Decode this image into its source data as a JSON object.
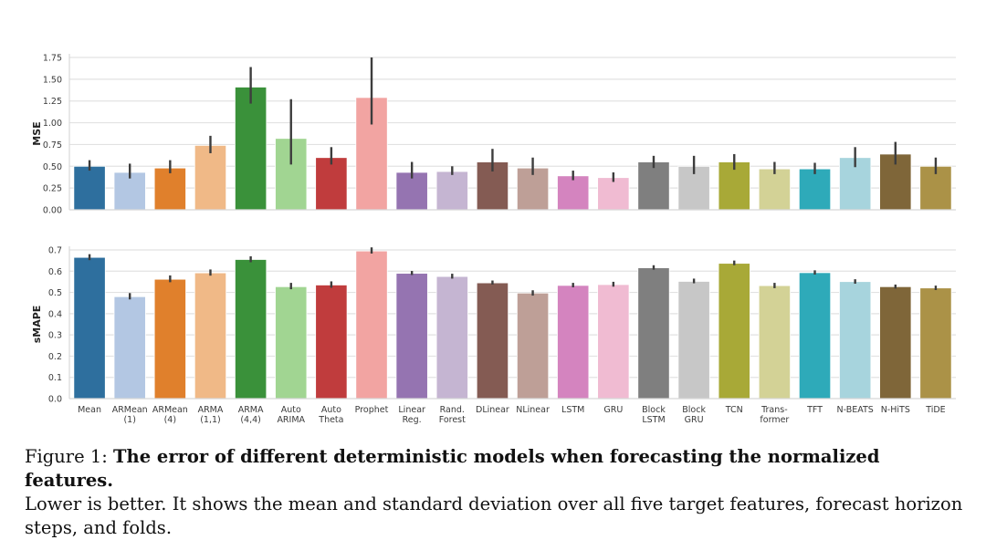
{
  "chart_data": [
    {
      "type": "bar",
      "title": "",
      "xlabel": "",
      "ylabel": "MSE",
      "ylim": [
        0,
        1.75
      ],
      "yticks": [
        "0.00",
        "0.25",
        "0.50",
        "0.75",
        "1.00",
        "1.25",
        "1.50",
        "1.75"
      ],
      "grid": true,
      "categories": [
        "Mean",
        "ARMean (1)",
        "ARMean (4)",
        "ARMA (1,1)",
        "ARMA (4,4)",
        "Auto ARIMA",
        "Auto Theta",
        "Prophet",
        "Linear Reg.",
        "Rand. Forest",
        "DLinear",
        "NLinear",
        "LSTM",
        "GRU",
        "Block LSTM",
        "Block GRU",
        "TCN",
        "Trans-former",
        "TFT",
        "N-BEATS",
        "N-HiTS",
        "TiDE"
      ],
      "values": [
        0.5,
        0.43,
        0.48,
        0.74,
        1.41,
        0.82,
        0.6,
        1.29,
        0.43,
        0.44,
        0.55,
        0.48,
        0.39,
        0.37,
        0.55,
        0.5,
        0.55,
        0.47,
        0.47,
        0.6,
        0.64,
        0.5
      ],
      "error_low": [
        0.45,
        0.36,
        0.42,
        0.65,
        1.22,
        0.52,
        0.52,
        0.98,
        0.36,
        0.4,
        0.44,
        0.4,
        0.34,
        0.32,
        0.48,
        0.41,
        0.46,
        0.41,
        0.41,
        0.49,
        0.52,
        0.41
      ],
      "error_high": [
        0.57,
        0.53,
        0.57,
        0.85,
        1.64,
        1.27,
        0.72,
        1.75,
        0.55,
        0.5,
        0.7,
        0.6,
        0.45,
        0.43,
        0.62,
        0.62,
        0.64,
        0.55,
        0.54,
        0.72,
        0.78,
        0.6
      ]
    },
    {
      "type": "bar",
      "title": "",
      "xlabel": "",
      "ylabel": "sMAPE",
      "ylim": [
        0,
        0.75
      ],
      "yticks": [
        "0.0",
        "0.1",
        "0.2",
        "0.3",
        "0.4",
        "0.5",
        "0.6",
        "0.7"
      ],
      "grid": true,
      "categories": [
        "Mean",
        "ARMean (1)",
        "ARMean (4)",
        "ARMA (1,1)",
        "ARMA (4,4)",
        "Auto ARIMA",
        "Auto Theta",
        "Prophet",
        "Linear Reg.",
        "Rand. Forest",
        "DLinear",
        "NLinear",
        "LSTM",
        "GRU",
        "Block LSTM",
        "Block GRU",
        "TCN",
        "Trans-former",
        "TFT",
        "N-BEATS",
        "N-HiTS",
        "TiDE"
      ],
      "values": [
        0.665,
        0.48,
        0.562,
        0.592,
        0.655,
        0.527,
        0.535,
        0.695,
        0.59,
        0.575,
        0.545,
        0.497,
        0.533,
        0.537,
        0.616,
        0.552,
        0.637,
        0.532,
        0.593,
        0.551,
        0.527,
        0.521
      ],
      "error_low": [
        0.652,
        0.467,
        0.548,
        0.579,
        0.642,
        0.515,
        0.522,
        0.683,
        0.582,
        0.565,
        0.537,
        0.485,
        0.524,
        0.527,
        0.607,
        0.543,
        0.628,
        0.52,
        0.584,
        0.541,
        0.518,
        0.511
      ],
      "error_high": [
        0.68,
        0.497,
        0.58,
        0.608,
        0.67,
        0.545,
        0.552,
        0.712,
        0.601,
        0.588,
        0.556,
        0.51,
        0.545,
        0.55,
        0.628,
        0.565,
        0.65,
        0.545,
        0.604,
        0.562,
        0.537,
        0.532
      ]
    }
  ],
  "x_labels": [
    [
      "Mean"
    ],
    [
      "ARMean",
      "(1)"
    ],
    [
      "ARMean",
      "(4)"
    ],
    [
      "ARMA",
      "(1,1)"
    ],
    [
      "ARMA",
      "(4,4)"
    ],
    [
      "Auto",
      "ARIMA"
    ],
    [
      "Auto",
      "Theta"
    ],
    [
      "Prophet"
    ],
    [
      "Linear",
      "Reg."
    ],
    [
      "Rand.",
      "Forest"
    ],
    [
      "DLinear"
    ],
    [
      "NLinear"
    ],
    [
      "LSTM"
    ],
    [
      "GRU"
    ],
    [
      "Block",
      "LSTM"
    ],
    [
      "Block",
      "GRU"
    ],
    [
      "TCN"
    ],
    [
      "Trans-",
      "former"
    ],
    [
      "TFT"
    ],
    [
      "N-BEATS"
    ],
    [
      "N-HiTS"
    ],
    [
      "TiDE"
    ]
  ],
  "colors": [
    "#2e6f9e",
    "#b3c7e3",
    "#e0802c",
    "#f0b987",
    "#3a913a",
    "#a1d592",
    "#c03c3d",
    "#f2a4a2",
    "#9574b1",
    "#c5b5d2",
    "#845b53",
    "#be9f97",
    "#d484bf",
    "#f0bbd2",
    "#7f7f7f",
    "#c7c7c7",
    "#a8a937",
    "#d3d296",
    "#2eaab9",
    "#a7d4dd",
    "#7f6639",
    "#ab9247"
  ],
  "caption": {
    "prefix": "Figure 1: ",
    "bold": "The error of different deterministic models when forecasting the normalized features.",
    "line2": "Lower is better.  It shows the mean and standard deviation over all five target features, forecast horizon",
    "line3": "steps, and folds."
  }
}
